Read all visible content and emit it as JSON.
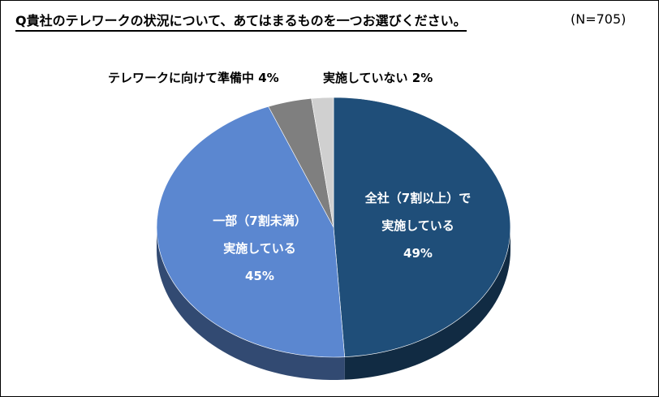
{
  "title": "Q貴社のテレワークの状況について、あてはまるものを一つお選びください。",
  "n_label": "(N=705)",
  "chart_data": {
    "type": "pie",
    "series": [
      {
        "category": "全社（7割以上）で実施している",
        "value": 49,
        "color": "#1F4E79"
      },
      {
        "category": "一部（7割未満）実施している",
        "value": 45,
        "color": "#5B87D0"
      },
      {
        "category": "テレワークに向けて準備中",
        "value": 4,
        "color": "#7F7F7F"
      },
      {
        "category": "実施していない",
        "value": 2,
        "color": "#D0D0D0"
      }
    ],
    "labels": {
      "full": {
        "line1": "全社（7割以上）で",
        "line2": "実施している",
        "pct": "49%"
      },
      "partial": {
        "line1": "一部（7割未満）",
        "line2": "実施している",
        "pct": "45%"
      },
      "preparing": "テレワークに向けて準備中 4%",
      "none": "実施していない 2%"
    }
  }
}
